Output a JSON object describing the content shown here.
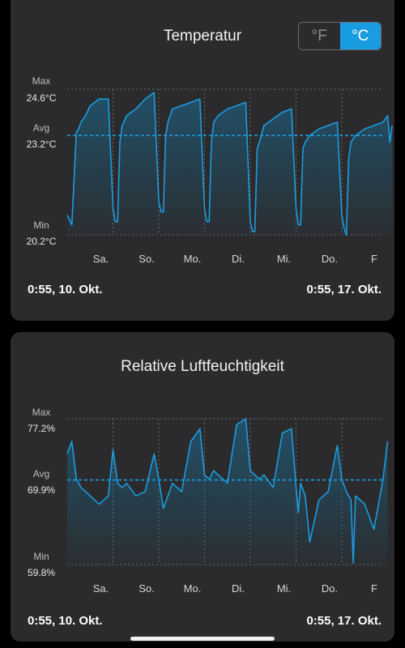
{
  "temperature_card": {
    "title": "Temperatur",
    "unit_toggle": {
      "fahrenheit_label": "°F",
      "celsius_label": "°C",
      "selected": "°C"
    },
    "max_label": "Max",
    "max_value": "24.6°C",
    "avg_label": "Avg",
    "avg_value": "23.2°C",
    "min_label": "Min",
    "min_value": "20.2°C",
    "range_start": "0:55,  10. Okt.",
    "range_end": "0:55,  17. Okt."
  },
  "humidity_card": {
    "title": "Relative Luftfeuchtigkeit",
    "max_label": "Max",
    "max_value": "77.2%",
    "avg_label": "Avg",
    "avg_value": "69.9%",
    "min_label": "Min",
    "min_value": "59.8%",
    "range_start": "0:55,  10. Okt.",
    "range_end": "0:55,  17. Okt."
  },
  "colors": {
    "line": "#1a9de0",
    "grid": "#6a6a6d",
    "card_bg": "#2b2b2d"
  },
  "chart_data": [
    {
      "type": "line",
      "title": "Temperatur",
      "ylim": [
        20.2,
        24.6
      ],
      "avg": 23.2,
      "categories": [
        "Sa.",
        "So.",
        "Mo.",
        "Di.",
        "Mi.",
        "Do.",
        "F"
      ],
      "x": [
        0,
        0.1,
        0.2,
        0.25,
        0.3,
        0.4,
        0.5,
        0.7,
        0.9,
        1.0,
        1.05,
        1.1,
        1.15,
        1.2,
        1.3,
        1.5,
        1.7,
        1.9,
        2.0,
        2.05,
        2.1,
        2.15,
        2.2,
        2.3,
        2.5,
        2.7,
        2.9,
        3.0,
        3.05,
        3.1,
        3.15,
        3.2,
        3.3,
        3.5,
        3.7,
        3.9,
        4.0,
        4.05,
        4.1,
        4.15,
        4.2,
        4.3,
        4.5,
        4.7,
        4.9,
        5.0,
        5.05,
        5.1,
        5.15,
        5.2,
        5.3,
        5.5,
        5.7,
        5.9,
        6.0,
        6.05,
        6.1,
        6.15,
        6.2,
        6.3,
        6.5,
        6.7,
        6.9,
        7.0,
        7.05,
        7.1
      ],
      "values": [
        20.8,
        20.5,
        23.3,
        23.4,
        23.6,
        23.8,
        24.1,
        24.3,
        24.3,
        21.0,
        20.6,
        20.6,
        23.0,
        23.5,
        23.8,
        24.0,
        24.3,
        24.5,
        21.2,
        20.9,
        20.9,
        23.2,
        23.6,
        24.0,
        24.1,
        24.2,
        24.3,
        21.0,
        20.6,
        20.6,
        23.0,
        23.6,
        23.8,
        24.0,
        24.1,
        24.2,
        20.6,
        20.3,
        20.3,
        22.8,
        23.0,
        23.5,
        23.7,
        23.9,
        24.0,
        21.0,
        20.5,
        20.5,
        22.8,
        23.0,
        23.2,
        23.4,
        23.5,
        23.6,
        20.8,
        20.4,
        20.2,
        22.5,
        23.0,
        23.2,
        23.4,
        23.5,
        23.6,
        23.8,
        23.0,
        23.5
      ]
    },
    {
      "type": "line",
      "title": "Relative Luftfeuchtigkeit",
      "ylim": [
        59.8,
        77.2
      ],
      "avg": 69.9,
      "categories": [
        "Sa.",
        "So.",
        "Mo.",
        "Di.",
        "Mi.",
        "Do.",
        "F"
      ],
      "x": [
        0,
        0.1,
        0.2,
        0.3,
        0.5,
        0.7,
        0.9,
        1.0,
        1.1,
        1.2,
        1.3,
        1.5,
        1.7,
        1.9,
        2.0,
        2.1,
        2.2,
        2.3,
        2.5,
        2.7,
        2.9,
        3.0,
        3.1,
        3.2,
        3.3,
        3.5,
        3.7,
        3.9,
        4.0,
        4.1,
        4.2,
        4.3,
        4.5,
        4.7,
        4.9,
        5.0,
        5.05,
        5.1,
        5.2,
        5.3,
        5.5,
        5.7,
        5.9,
        6.0,
        6.1,
        6.2,
        6.25,
        6.3,
        6.5,
        6.7,
        6.9,
        7.0
      ],
      "values": [
        73.0,
        74.5,
        70.0,
        69.0,
        68.0,
        67.0,
        68.0,
        73.5,
        69.5,
        69.0,
        69.5,
        68.0,
        68.5,
        73.0,
        70.0,
        66.5,
        68.0,
        69.5,
        68.5,
        74.5,
        76.0,
        70.5,
        70.0,
        71.0,
        70.5,
        69.5,
        76.5,
        77.2,
        71.0,
        70.5,
        70.0,
        70.5,
        69.0,
        75.5,
        76.0,
        69.0,
        66.0,
        69.5,
        68.0,
        62.5,
        67.5,
        68.5,
        74.0,
        70.0,
        68.5,
        67.5,
        60.0,
        68.0,
        67.0,
        64.0,
        70.0,
        74.5
      ]
    }
  ]
}
